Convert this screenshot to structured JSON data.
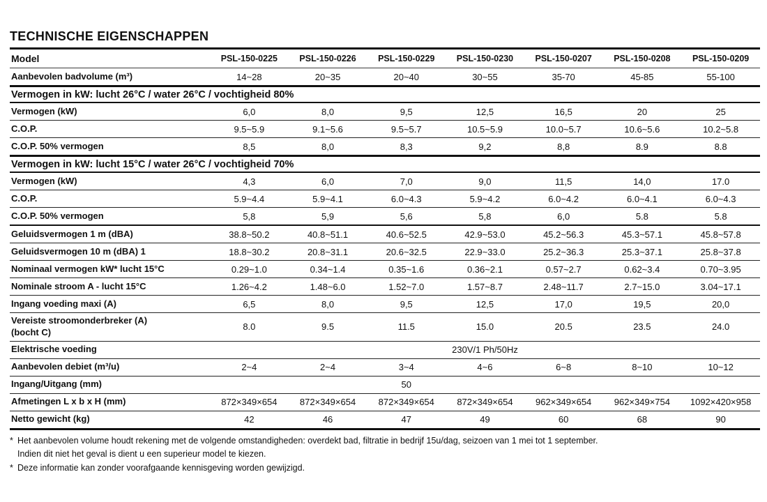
{
  "title": "TECHNISCHE EIGENSCHAPPEN",
  "table": {
    "rows": [
      {
        "type": "models",
        "label": "Model",
        "values": [
          "PSL-150-0225",
          "PSL-150-0226",
          "PSL-150-0229",
          "PSL-150-0230",
          "PSL-150-0207",
          "PSL-150-0208",
          "PSL-150-0209"
        ]
      },
      {
        "type": "data",
        "label": "Aanbevolen badvolume (m³)",
        "values": [
          "14~28",
          "20~35",
          "20~40",
          "30~55",
          "35-70",
          "45-85",
          "55-100"
        ]
      },
      {
        "type": "section",
        "label": "Vermogen in kW: lucht 26°C / water 26°C / vochtigheid 80%"
      },
      {
        "type": "data",
        "label": "Vermogen (kW)",
        "values": [
          "6,0",
          "8,0",
          "9,5",
          "12,5",
          "16,5",
          "20",
          "25"
        ]
      },
      {
        "type": "data",
        "label": "C.O.P.",
        "values": [
          "9.5~5.9",
          "9.1~5.6",
          "9.5~5.7",
          "10.5~5.9",
          "10.0~5.7",
          "10.6~5.6",
          "10.2~5.8"
        ]
      },
      {
        "type": "data",
        "label": "C.O.P. 50% vermogen",
        "values": [
          "8,5",
          "8,0",
          "8,3",
          "9,2",
          "8,8",
          "8.9",
          "8.8"
        ]
      },
      {
        "type": "section",
        "label": "Vermogen in kW: lucht 15°C / water 26°C / vochtigheid 70%"
      },
      {
        "type": "data",
        "label": "Vermogen (kW)",
        "values": [
          "4,3",
          "6,0",
          "7,0",
          "9,0",
          "11,5",
          "14,0",
          "17.0"
        ]
      },
      {
        "type": "data",
        "label": "C.O.P.",
        "values": [
          "5.9~4.4",
          "5.9~4.1",
          "6.0~4.3",
          "5.9~4.2",
          "6.0~4.2",
          "6.0~4.1",
          "6.0~4.3"
        ]
      },
      {
        "type": "data",
        "label": "C.O.P. 50% vermogen",
        "values": [
          "5,8",
          "5,9",
          "5,6",
          "5,8",
          "6,0",
          "5.8",
          "5.8"
        ]
      },
      {
        "type": "data",
        "sep": true,
        "label": "Geluidsvermogen 1 m (dBA)",
        "values": [
          "38.8~50.2",
          "40.8~51.1",
          "40.6~52.5",
          "42.9~53.0",
          "45.2~56.3",
          "45.3~57.1",
          "45.8~57.8"
        ]
      },
      {
        "type": "data",
        "label": "Geluidsvermogen 10 m (dBA) 1",
        "values": [
          "18.8~30.2",
          "20.8~31.1",
          "20.6~32.5",
          "22.9~33.0",
          "25.2~36.3",
          "25.3~37.1",
          "25.8~37.8"
        ]
      },
      {
        "type": "data",
        "label": "Nominaal vermogen kW* lucht 15°C",
        "values": [
          "0.29~1.0",
          "0.34~1.4",
          "0.35~1.6",
          "0.36~2.1",
          "0.57~2.7",
          "0.62~3.4",
          "0.70~3.95"
        ]
      },
      {
        "type": "data",
        "label": "Nominale stroom A - lucht 15°C",
        "values": [
          "1.26~4.2",
          "1.48~6.0",
          "1.52~7.0",
          "1.57~8.7",
          "2.48~11.7",
          "2.7~15.0",
          "3.04~17.1"
        ]
      },
      {
        "type": "data",
        "label": "Ingang voeding maxi (A)",
        "values": [
          "6,5",
          "8,0",
          "9,5",
          "12,5",
          "17,0",
          "19,5",
          "20,0"
        ]
      },
      {
        "type": "data",
        "label": "Vereiste stroomonderbreker (A)",
        "label2": "(bocht C)",
        "values": [
          "8.0",
          "9.5",
          "11.5",
          "15.0",
          "20.5",
          "23.5",
          "24.0"
        ]
      },
      {
        "type": "data",
        "label": "Elektrische voeding",
        "colspan": 7,
        "values": [
          "230V/1 Ph/50Hz"
        ]
      },
      {
        "type": "data",
        "label": "Aanbevolen debiet (m³/u)",
        "values": [
          "2~4",
          "2~4",
          "3~4",
          "4~6",
          "6~8",
          "8~10",
          "10~12"
        ]
      },
      {
        "type": "data",
        "label": "Ingang/Uitgang (mm)",
        "colspan": 5,
        "values": [
          "50"
        ]
      },
      {
        "type": "data",
        "label": "Afmetingen L x b x H (mm)",
        "values": [
          "872×349×654",
          "872×349×654",
          "872×349×654",
          "872×349×654",
          "962×349×654",
          "962×349×754",
          "1092×420×958"
        ]
      },
      {
        "type": "data",
        "label": "Netto gewicht (kg)",
        "values": [
          "42",
          "46",
          "47",
          "49",
          "60",
          "68",
          "90"
        ]
      }
    ]
  },
  "footnotes": [
    {
      "marker": "*",
      "text": "Het aanbevolen volume houdt rekening met de volgende omstandigheden: overdekt bad, filtratie in bedrijf 15u/dag, seizoen van 1 mei tot 1 september."
    },
    {
      "marker": "",
      "text": "Indien dit niet het geval is dient u een superieur model te kiezen."
    },
    {
      "marker": "*",
      "text": "Deze informatie kan zonder voorafgaande kennisgeving worden gewijzigd."
    }
  ],
  "colors": {
    "text": "#111111",
    "background": "#ffffff",
    "rule": "#111111"
  }
}
